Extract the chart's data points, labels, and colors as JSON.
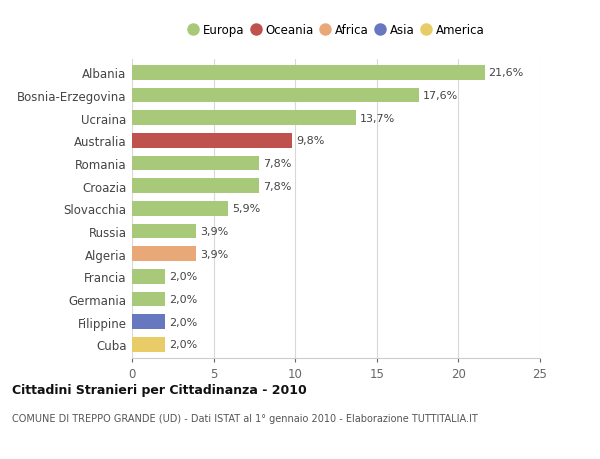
{
  "categories": [
    "Albania",
    "Bosnia-Erzegovina",
    "Ucraina",
    "Australia",
    "Romania",
    "Croazia",
    "Slovacchia",
    "Russia",
    "Algeria",
    "Francia",
    "Germania",
    "Filippine",
    "Cuba"
  ],
  "values": [
    21.6,
    17.6,
    13.7,
    9.8,
    7.8,
    7.8,
    5.9,
    3.9,
    3.9,
    2.0,
    2.0,
    2.0,
    2.0
  ],
  "labels": [
    "21,6%",
    "17,6%",
    "13,7%",
    "9,8%",
    "7,8%",
    "7,8%",
    "5,9%",
    "3,9%",
    "3,9%",
    "2,0%",
    "2,0%",
    "2,0%",
    "2,0%"
  ],
  "bar_colors": [
    "#a8c87a",
    "#a8c87a",
    "#a8c87a",
    "#c0524e",
    "#a8c87a",
    "#a8c87a",
    "#a8c87a",
    "#a8c87a",
    "#e8a878",
    "#a8c87a",
    "#a8c87a",
    "#6878c0",
    "#e8cc68"
  ],
  "continent_colors": {
    "Europa": "#a8c87a",
    "Oceania": "#c0524e",
    "Africa": "#e8a878",
    "Asia": "#6878c0",
    "America": "#e8cc68"
  },
  "legend_labels": [
    "Europa",
    "Oceania",
    "Africa",
    "Asia",
    "America"
  ],
  "xlim": [
    0,
    25
  ],
  "xticks": [
    0,
    5,
    10,
    15,
    20,
    25
  ],
  "title": "Cittadini Stranieri per Cittadinanza - 2010",
  "subtitle": "COMUNE DI TREPPO GRANDE (UD) - Dati ISTAT al 1° gennaio 2010 - Elaborazione TUTTITALIA.IT",
  "background_color": "#ffffff",
  "bar_height": 0.65,
  "grid_color": "#d8d8d8",
  "label_fontsize": 8,
  "ytick_fontsize": 8.5,
  "xtick_fontsize": 8.5
}
